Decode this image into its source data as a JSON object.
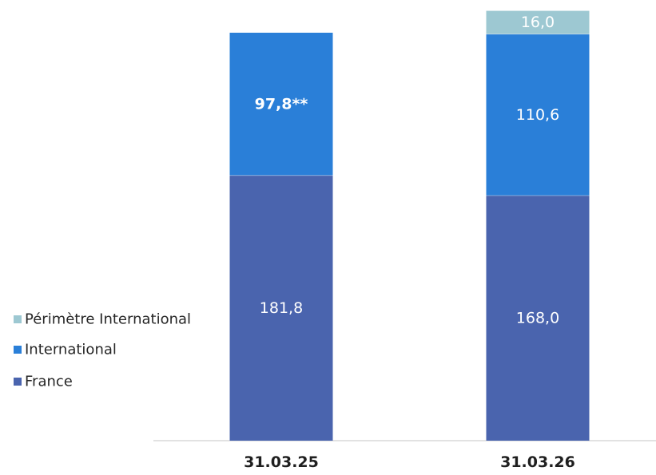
{
  "chart_data": {
    "type": "bar",
    "stacked": true,
    "categories": [
      "31.03.25",
      "31.03.26"
    ],
    "series": [
      {
        "name": "France",
        "color": "#4a64ae",
        "values": [
          181.8,
          168.0
        ],
        "labels": [
          "181,8",
          "168,0"
        ]
      },
      {
        "name": "International",
        "color": "#2a7fd8",
        "values": [
          97.8,
          110.6
        ],
        "labels": [
          "97,8**",
          "110,6"
        ]
      },
      {
        "name": "Périmètre International",
        "color": "#9dc8d2",
        "values": [
          0,
          16.0
        ],
        "labels": [
          "",
          "16,0"
        ]
      }
    ],
    "legend": {
      "placement": "left",
      "order": [
        "Périmètre International",
        "International",
        "France"
      ]
    },
    "grid": false,
    "ylim": [
      0,
      296
    ]
  }
}
